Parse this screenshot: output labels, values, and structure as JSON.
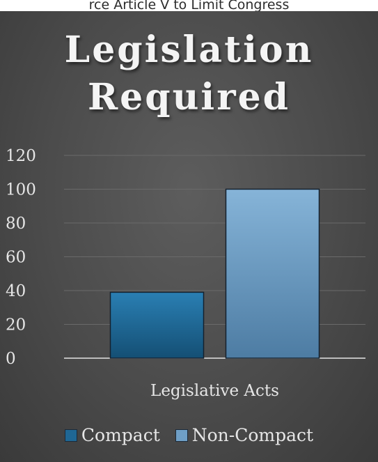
{
  "caption": "rce Article V to Limit Congress",
  "chart_data": {
    "type": "bar",
    "title_lines": [
      "Legislation",
      "Required"
    ],
    "categories": [
      "Legislative Acts"
    ],
    "series": [
      {
        "name": "Compact",
        "values": [
          39
        ],
        "color": "#1f6794"
      },
      {
        "name": "Non-Compact",
        "values": [
          100
        ],
        "color": "#6f9fc6"
      }
    ],
    "xlabel": "Legislative Acts",
    "ylabel": "",
    "ylim": [
      0,
      120
    ],
    "yticks": [
      0,
      20,
      40,
      60,
      80,
      100,
      120
    ],
    "grid": true,
    "legend_position": "bottom"
  }
}
